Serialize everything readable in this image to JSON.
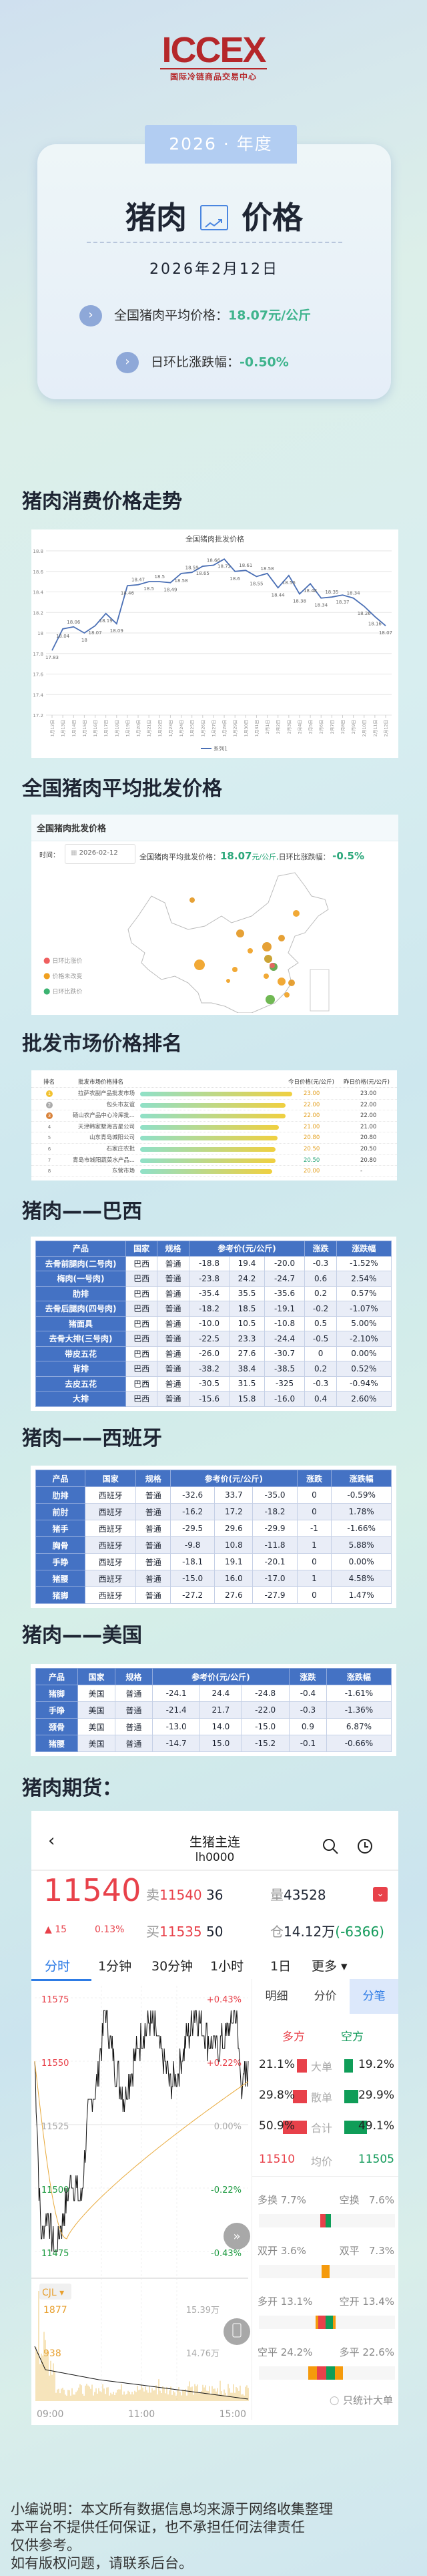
{
  "logo": {
    "mark": "ICCEX",
    "subtitle": "国际冷链商品交易中心"
  },
  "hero": {
    "year_tab": "2026 · 年度",
    "title_left": "猪肉",
    "title_right": "价格",
    "title_icon": "trend-chart-icon",
    "date": "2026年2月12日",
    "avg_label": "全国猪肉平均价格：",
    "avg_value": "18.07元/公斤",
    "change_label": "日环比涨跌幅：",
    "change_value": "-0.50%",
    "accent": "#3fb48d"
  },
  "sections": {
    "trend": "猪肉消费价格走势",
    "wholesale": "全国猪肉平均批发价格",
    "ranking": "批发市场价格排名",
    "brazil": "猪肉——巴西",
    "spain": "猪肉——西班牙",
    "usa": "猪肉——美国",
    "futures": "猪肉期货："
  },
  "chart_data": {
    "type": "line",
    "title": "全国猪肉批发价格",
    "xlabel": "",
    "ylabel": "",
    "ylim": [
      17.2,
      18.8
    ],
    "yticks": [
      "17.2",
      "17.4",
      "17.6",
      "17.8",
      "18",
      "18.2",
      "18.4",
      "18.6",
      "18.8"
    ],
    "grid": true,
    "legend": "bottom",
    "categories": [
      "1月12日",
      "1月13日",
      "1月14日",
      "1月15日",
      "1月16日",
      "1月17日",
      "1月18日",
      "1月19日",
      "1月20日",
      "1月21日",
      "1月22日",
      "1月23日",
      "1月24日",
      "1月25日",
      "1月26日",
      "1月27日",
      "1月28日",
      "1月29日",
      "1月30日",
      "1月31日",
      "2月1日",
      "2月2日",
      "2月3日",
      "2月4日",
      "2月5日",
      "2月6日",
      "2月7日",
      "2月8日",
      "2月9日",
      "2月10日",
      "2月11日",
      "2月12日"
    ],
    "series": [
      {
        "name": "系列1",
        "color": "#4a6fb5",
        "values": [
          17.83,
          18.04,
          18.06,
          18,
          18.07,
          18.19,
          18.09,
          18.46,
          18.47,
          18.5,
          18.5,
          18.49,
          18.58,
          18.59,
          18.65,
          18.66,
          18.72,
          18.6,
          18.61,
          18.55,
          18.58,
          18.44,
          18.56,
          18.38,
          18.48,
          18.34,
          18.35,
          18.37,
          18.34,
          18.26,
          18.16,
          18.07
        ]
      }
    ]
  },
  "map": {
    "title": "全国猪肉批发价格",
    "time_label": "时间：",
    "date": "2026-02-12",
    "avg_label": "全国猪肉平均批发价格：",
    "avg_value": "18.07",
    "avg_unit": "元/公斤,",
    "change_label": "日环比涨跌幅：",
    "change_value": "-0.5%",
    "legend": [
      {
        "label": "日环比涨价",
        "color": "#ef5f5f"
      },
      {
        "label": "价格未改变",
        "color": "#f0a020"
      },
      {
        "label": "日环比跌价",
        "color": "#3cb371"
      }
    ]
  },
  "ranking": {
    "headers": [
      "排名",
      "批发市场价格排名",
      "今日价格(元/公斤)",
      "昨日价格(元/公斤)"
    ],
    "rows": [
      {
        "rank": "1",
        "name": "拉萨农副产品批发市场",
        "today": "23.00",
        "yesterday": "23.00",
        "value": 23,
        "trend": "flat"
      },
      {
        "rank": "2",
        "name": "包头市友谊",
        "today": "22.00",
        "yesterday": "22.00",
        "value": 22,
        "trend": "flat"
      },
      {
        "rank": "3",
        "name": "砀山农产品中心冷库批...",
        "today": "22.00",
        "yesterday": "22.00",
        "value": 22,
        "trend": "flat"
      },
      {
        "rank": "4",
        "name": "天津韩家墅海吉星公司",
        "today": "21.00",
        "yesterday": "21.00",
        "value": 21,
        "trend": "flat"
      },
      {
        "rank": "5",
        "name": "山东青岛城阳公司",
        "today": "20.80",
        "yesterday": "20.80",
        "value": 20.8,
        "trend": "flat"
      },
      {
        "rank": "6",
        "name": "石家庄农批",
        "today": "20.50",
        "yesterday": "20.50",
        "value": 20.5,
        "trend": "flat"
      },
      {
        "rank": "7",
        "name": "青岛市城阳蔬菜水产品...",
        "today": "20.50",
        "yesterday": "20.80",
        "value": 20.5,
        "trend": "down"
      },
      {
        "rank": "8",
        "name": "东营市场",
        "today": "20.00",
        "yesterday": "-",
        "value": 20,
        "trend": "flat"
      }
    ]
  },
  "table_headers": [
    "产品",
    "国家",
    "规格",
    "参考价(元/公斤)",
    "涨跌",
    "涨跌幅"
  ],
  "brazil": [
    [
      "去骨前腿肉(二号肉)",
      "巴西",
      "普通",
      "-18.8",
      "19.4",
      "-20.0",
      "-0.3",
      "-1.52%"
    ],
    [
      "梅肉(一号肉)",
      "巴西",
      "普通",
      "-23.8",
      "24.2",
      "-24.7",
      "0.6",
      "2.54%"
    ],
    [
      "肋排",
      "巴西",
      "普通",
      "-35.4",
      "35.5",
      "-35.6",
      "0.2",
      "0.57%"
    ],
    [
      "去骨后腿肉(四号肉)",
      "巴西",
      "普通",
      "-18.2",
      "18.5",
      "-19.1",
      "-0.2",
      "-1.07%"
    ],
    [
      "猪面具",
      "巴西",
      "普通",
      "-10.0",
      "10.5",
      "-10.8",
      "0.5",
      "5.00%"
    ],
    [
      "去骨大排(三号肉)",
      "巴西",
      "普通",
      "-22.5",
      "23.3",
      "-24.4",
      "-0.5",
      "-2.10%"
    ],
    [
      "带皮五花",
      "巴西",
      "普通",
      "-26.0",
      "27.6",
      "-30.7",
      "0",
      "0.00%"
    ],
    [
      "背排",
      "巴西",
      "普通",
      "-38.2",
      "38.4",
      "-38.5",
      "0.2",
      "0.52%"
    ],
    [
      "去皮五花",
      "巴西",
      "普通",
      "-30.5",
      "31.5",
      "-325",
      "-0.3",
      "-0.94%"
    ],
    [
      "大排",
      "巴西",
      "普通",
      "-15.6",
      "15.8",
      "-16.0",
      "0.4",
      "2.60%"
    ]
  ],
  "spain": [
    [
      "肋排",
      "西班牙",
      "普通",
      "-32.6",
      "33.7",
      "-35.0",
      "0",
      "-0.59%"
    ],
    [
      "前肘",
      "西班牙",
      "普通",
      "-16.2",
      "17.2",
      "-18.2",
      "0",
      "1.78%"
    ],
    [
      "猪手",
      "西班牙",
      "普通",
      "-29.5",
      "29.6",
      "-29.9",
      "-1",
      "-1.66%"
    ],
    [
      "胸骨",
      "西班牙",
      "普通",
      "-9.8",
      "10.8",
      "-11.8",
      "1",
      "5.88%"
    ],
    [
      "手睁",
      "西班牙",
      "普通",
      "-18.1",
      "19.1",
      "-20.1",
      "0",
      "0.00%"
    ],
    [
      "猪腰",
      "西班牙",
      "普通",
      "-15.0",
      "16.0",
      "-17.0",
      "1",
      "4.58%"
    ],
    [
      "猪脚",
      "西班牙",
      "普通",
      "-27.2",
      "27.6",
      "-27.9",
      "0",
      "1.47%"
    ]
  ],
  "usa": [
    [
      "猪脚",
      "美国",
      "普通",
      "-24.1",
      "24.4",
      "-24.8",
      "-0.4",
      "-1.61%"
    ],
    [
      "手睁",
      "美国",
      "普通",
      "-21.4",
      "21.7",
      "-22.0",
      "-0.3",
      "-1.36%"
    ],
    [
      "颈骨",
      "美国",
      "普通",
      "-13.0",
      "14.0",
      "-15.0",
      "0.9",
      "6.87%"
    ],
    [
      "猪腰",
      "美国",
      "普通",
      "-14.7",
      "15.0",
      "-15.2",
      "-0.1",
      "-0.66%"
    ]
  ],
  "futures": {
    "title": "生猪主连",
    "code": "lh0000",
    "price": "11540",
    "change": "▲ 15",
    "change_pct": "0.13%",
    "sell_label": "卖",
    "sell_price": "11540",
    "sell_qty": "36",
    "buy_label": "买",
    "buy_price": "11535",
    "buy_qty": "50",
    "vol_label": "量",
    "vol": "43528",
    "oi_label": "仓",
    "oi": "14.12万",
    "oi_change": "(-6366)",
    "tabs": [
      "分时",
      "1分钟",
      "30分钟",
      "1小时",
      "1日",
      "更多"
    ],
    "active_tab": "分时",
    "price_axis": [
      "11575",
      "11550",
      "11525",
      "11500",
      "11475"
    ],
    "pct_axis": [
      "+0.43%",
      "+0.22%",
      "0.00%",
      "-0.22%",
      "-0.43%"
    ],
    "volume": {
      "indicator": "CJL",
      "max": "1877",
      "mid": "938",
      "oi_max": "15.39万",
      "oi_mid": "14.76万"
    },
    "time_axis": [
      "09:00",
      "11:00",
      "15:00"
    ],
    "side_tabs": [
      "明细",
      "分价",
      "分笔"
    ],
    "active_side_tab": "分笔",
    "long_label": "多方",
    "short_label": "空方",
    "flows": [
      {
        "label": "大单",
        "long": "21.1%",
        "short": "19.2%",
        "l": 21.1,
        "s": 19.2
      },
      {
        "label": "散单",
        "long": "29.8%",
        "short": "29.9%",
        "l": 29.8,
        "s": 29.9
      },
      {
        "label": "合计",
        "long": "50.9%",
        "short": "49.1%",
        "l": 50.9,
        "s": 49.1
      }
    ],
    "avg_label": "均价",
    "avg_long": "11510",
    "avg_short": "11505",
    "pairs": [
      {
        "a": "多换 7.7%",
        "b": "空换   7.6%",
        "bars": [
          [
            "#e8414a",
            7.7
          ],
          [
            "#0f9d58",
            7.6
          ]
        ]
      },
      {
        "a": "双开 3.6%",
        "b": "双平   7.3%",
        "bars": [
          [
            "#f59a0c",
            3.6
          ],
          [
            "#f59a0c",
            7.3
          ]
        ]
      },
      {
        "a": "多开 13.1%",
        "b": "空开 13.4%",
        "bars": [
          [
            "#f59a0c",
            3
          ],
          [
            "#e8414a",
            10.1
          ],
          [
            "#0f9d58",
            10.4
          ],
          [
            "#f59a0c",
            3
          ]
        ]
      },
      {
        "a": "空平 24.2%",
        "b": "多平 22.6%",
        "bars": [
          [
            "#f59a0c",
            12
          ],
          [
            "#e8414a",
            12.2
          ],
          [
            "#0f9d58",
            12
          ],
          [
            "#f59a0c",
            10.6
          ]
        ]
      }
    ],
    "only_big": "只统计大单",
    "colors": {
      "up": "#e8414a",
      "down": "#129a5a",
      "accent": "#2d7be5"
    }
  },
  "footer": [
    "小编说明：本文所有数据信息均来源于网络收集整理",
    "本平台不提供任何保证，也不承担任何法律责任",
    "仅供参考。",
    "如有版权问题，请联系后台。"
  ]
}
